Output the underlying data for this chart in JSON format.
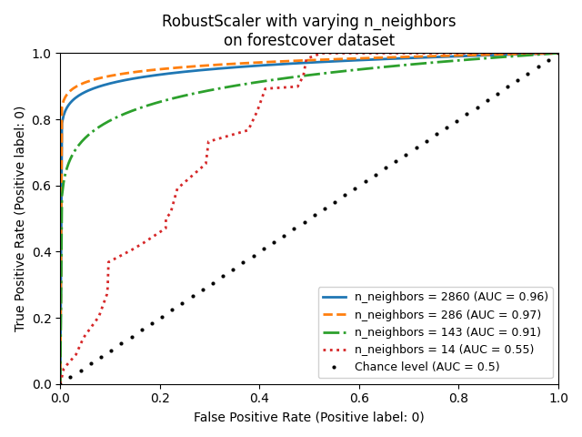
{
  "title": "RobustScaler with varying n_neighbors\non forestcover dataset",
  "xlabel": "False Positive Rate (Positive label: 0)",
  "ylabel": "True Positive Rate (Positive label: 0)",
  "xlim": [
    0.0,
    1.0
  ],
  "ylim": [
    0.0,
    1.0
  ],
  "curves": [
    {
      "label": "n_neighbors = 2860 (AUC = 0.96)",
      "color": "#1f77b4",
      "linestyle": "solid",
      "linewidth": 2,
      "auc": 0.96,
      "n_neighbors": 2860
    },
    {
      "label": "n_neighbors = 286 (AUC = 0.97)",
      "color": "#ff7f0e",
      "linestyle": "dashed",
      "linewidth": 2,
      "auc": 0.97,
      "n_neighbors": 286
    },
    {
      "label": "n_neighbors = 143 (AUC = 0.91)",
      "color": "#2ca02c",
      "linestyle": "dashdot",
      "linewidth": 2,
      "auc": 0.91,
      "n_neighbors": 143
    },
    {
      "label": "n_neighbors = 14 (AUC = 0.55)",
      "color": "#d62728",
      "linestyle": "dotted",
      "linewidth": 2,
      "auc": 0.55,
      "n_neighbors": 14
    }
  ],
  "chance_label": "Chance level (AUC = 0.5)",
  "chance_color": "black",
  "chance_marker": ".",
  "chance_linestyle": "None"
}
